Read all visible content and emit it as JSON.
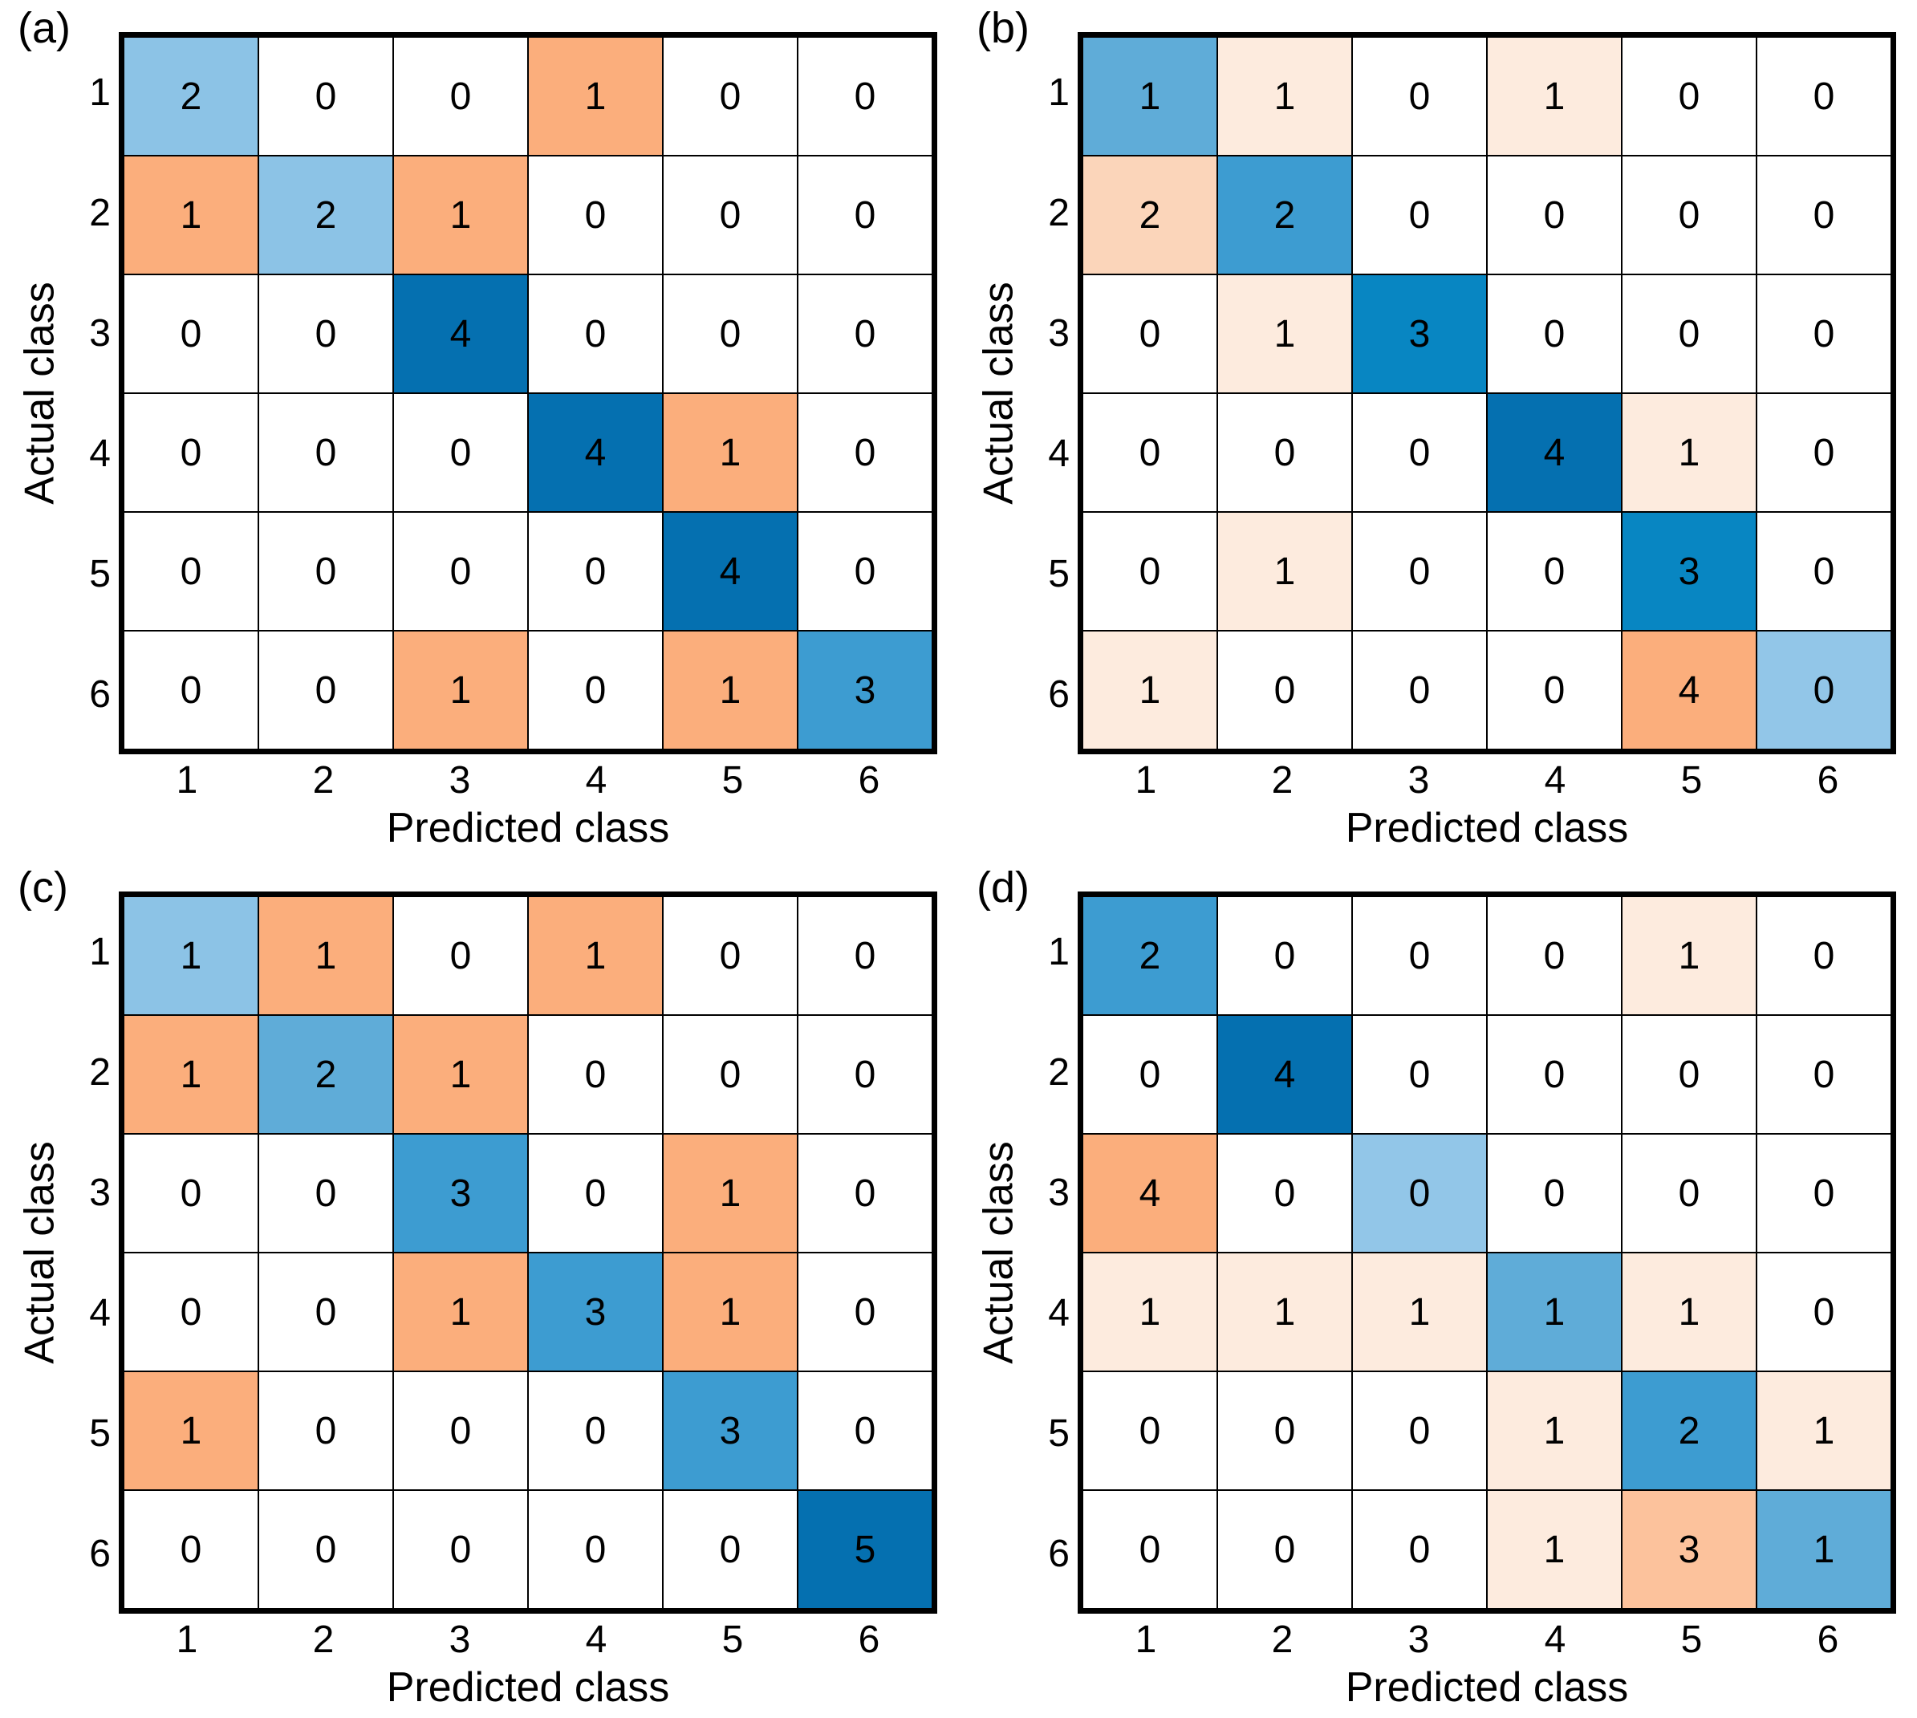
{
  "colors": {
    "background": "#FFFFFF",
    "grid_line": "#000000",
    "text": "#000000",
    "correct_scale_blues": [
      "#92C6E8",
      "#8CC3E6",
      "#5FACD8",
      "#3D9CD1",
      "#0886C2",
      "#0570B0"
    ],
    "error_scale_oranges": [
      "#FDEBDE",
      "#FBD5BA",
      "#FCC29C",
      "#FBAE7C"
    ]
  },
  "chart_data": [
    {
      "type": "heatmap",
      "panel": "(a)",
      "xlabel": "Predicted class",
      "ylabel": "Actual class",
      "x_ticks": [
        "1",
        "2",
        "3",
        "4",
        "5",
        "6"
      ],
      "y_ticks": [
        "1",
        "2",
        "3",
        "4",
        "5",
        "6"
      ],
      "matrix": [
        [
          2,
          0,
          0,
          1,
          0,
          0
        ],
        [
          1,
          2,
          1,
          0,
          0,
          0
        ],
        [
          0,
          0,
          4,
          0,
          0,
          0
        ],
        [
          0,
          0,
          0,
          4,
          1,
          0
        ],
        [
          0,
          0,
          0,
          0,
          4,
          0
        ],
        [
          0,
          0,
          1,
          0,
          1,
          3
        ]
      ],
      "cell_colors": [
        [
          "#8CC3E6",
          "#FFFFFF",
          "#FFFFFF",
          "#FBAE7C",
          "#FFFFFF",
          "#FFFFFF"
        ],
        [
          "#FBAE7C",
          "#8CC3E6",
          "#FBAE7C",
          "#FFFFFF",
          "#FFFFFF",
          "#FFFFFF"
        ],
        [
          "#FFFFFF",
          "#FFFFFF",
          "#0570B0",
          "#FFFFFF",
          "#FFFFFF",
          "#FFFFFF"
        ],
        [
          "#FFFFFF",
          "#FFFFFF",
          "#FFFFFF",
          "#0570B0",
          "#FBAE7C",
          "#FFFFFF"
        ],
        [
          "#FFFFFF",
          "#FFFFFF",
          "#FFFFFF",
          "#FFFFFF",
          "#0570B0",
          "#FFFFFF"
        ],
        [
          "#FFFFFF",
          "#FFFFFF",
          "#FBAE7C",
          "#FFFFFF",
          "#FBAE7C",
          "#3D9CD1"
        ]
      ]
    },
    {
      "type": "heatmap",
      "panel": "(b)",
      "xlabel": "Predicted class",
      "ylabel": "Actual class",
      "x_ticks": [
        "1",
        "2",
        "3",
        "4",
        "5",
        "6"
      ],
      "y_ticks": [
        "1",
        "2",
        "3",
        "4",
        "5",
        "6"
      ],
      "matrix": [
        [
          1,
          1,
          0,
          1,
          0,
          0
        ],
        [
          2,
          2,
          0,
          0,
          0,
          0
        ],
        [
          0,
          1,
          3,
          0,
          0,
          0
        ],
        [
          0,
          0,
          0,
          4,
          1,
          0
        ],
        [
          0,
          1,
          0,
          0,
          3,
          0
        ],
        [
          1,
          0,
          0,
          0,
          4,
          0
        ]
      ],
      "cell_colors": [
        [
          "#5FACD8",
          "#FDEBDE",
          "#FFFFFF",
          "#FDEBDE",
          "#FFFFFF",
          "#FFFFFF"
        ],
        [
          "#FBD5BA",
          "#3D9CD1",
          "#FFFFFF",
          "#FFFFFF",
          "#FFFFFF",
          "#FFFFFF"
        ],
        [
          "#FFFFFF",
          "#FDEBDE",
          "#0886C2",
          "#FFFFFF",
          "#FFFFFF",
          "#FFFFFF"
        ],
        [
          "#FFFFFF",
          "#FFFFFF",
          "#FFFFFF",
          "#0570B0",
          "#FDEBDE",
          "#FFFFFF"
        ],
        [
          "#FFFFFF",
          "#FDEBDE",
          "#FFFFFF",
          "#FFFFFF",
          "#0886C2",
          "#FFFFFF"
        ],
        [
          "#FDEBDE",
          "#FFFFFF",
          "#FFFFFF",
          "#FFFFFF",
          "#FBAE7C",
          "#92C6E8"
        ]
      ]
    },
    {
      "type": "heatmap",
      "panel": "(c)",
      "xlabel": "Predicted class",
      "ylabel": "Actual class",
      "x_ticks": [
        "1",
        "2",
        "3",
        "4",
        "5",
        "6"
      ],
      "y_ticks": [
        "1",
        "2",
        "3",
        "4",
        "5",
        "6"
      ],
      "matrix": [
        [
          1,
          1,
          0,
          1,
          0,
          0
        ],
        [
          1,
          2,
          1,
          0,
          0,
          0
        ],
        [
          0,
          0,
          3,
          0,
          1,
          0
        ],
        [
          0,
          0,
          1,
          3,
          1,
          0
        ],
        [
          1,
          0,
          0,
          0,
          3,
          0
        ],
        [
          0,
          0,
          0,
          0,
          0,
          5
        ]
      ],
      "cell_colors": [
        [
          "#8CC3E6",
          "#FBAE7C",
          "#FFFFFF",
          "#FBAE7C",
          "#FFFFFF",
          "#FFFFFF"
        ],
        [
          "#FBAE7C",
          "#5FACD8",
          "#FBAE7C",
          "#FFFFFF",
          "#FFFFFF",
          "#FFFFFF"
        ],
        [
          "#FFFFFF",
          "#FFFFFF",
          "#3D9CD1",
          "#FFFFFF",
          "#FBAE7C",
          "#FFFFFF"
        ],
        [
          "#FFFFFF",
          "#FFFFFF",
          "#FBAE7C",
          "#3D9CD1",
          "#FBAE7C",
          "#FFFFFF"
        ],
        [
          "#FBAE7C",
          "#FFFFFF",
          "#FFFFFF",
          "#FFFFFF",
          "#3D9CD1",
          "#FFFFFF"
        ],
        [
          "#FFFFFF",
          "#FFFFFF",
          "#FFFFFF",
          "#FFFFFF",
          "#FFFFFF",
          "#0570B0"
        ]
      ]
    },
    {
      "type": "heatmap",
      "panel": "(d)",
      "xlabel": "Predicted class",
      "ylabel": "Actual class",
      "x_ticks": [
        "1",
        "2",
        "3",
        "4",
        "5",
        "6"
      ],
      "y_ticks": [
        "1",
        "2",
        "3",
        "4",
        "5",
        "6"
      ],
      "matrix": [
        [
          2,
          0,
          0,
          0,
          1,
          0
        ],
        [
          0,
          4,
          0,
          0,
          0,
          0
        ],
        [
          4,
          0,
          0,
          0,
          0,
          0
        ],
        [
          1,
          1,
          1,
          1,
          1,
          0
        ],
        [
          0,
          0,
          0,
          1,
          2,
          1
        ],
        [
          0,
          0,
          0,
          1,
          3,
          1
        ]
      ],
      "cell_colors": [
        [
          "#3D9CD1",
          "#FFFFFF",
          "#FFFFFF",
          "#FFFFFF",
          "#FDEBDE",
          "#FFFFFF"
        ],
        [
          "#FFFFFF",
          "#0570B0",
          "#FFFFFF",
          "#FFFFFF",
          "#FFFFFF",
          "#FFFFFF"
        ],
        [
          "#FBAE7C",
          "#FFFFFF",
          "#92C6E8",
          "#FFFFFF",
          "#FFFFFF",
          "#FFFFFF"
        ],
        [
          "#FDEBDE",
          "#FDEBDE",
          "#FDEBDE",
          "#5FACD8",
          "#FDEBDE",
          "#FFFFFF"
        ],
        [
          "#FFFFFF",
          "#FFFFFF",
          "#FFFFFF",
          "#FDEBDE",
          "#3D9CD1",
          "#FDEBDE"
        ],
        [
          "#FFFFFF",
          "#FFFFFF",
          "#FFFFFF",
          "#FDEBDE",
          "#FCC29C",
          "#5FACD8"
        ]
      ]
    }
  ]
}
